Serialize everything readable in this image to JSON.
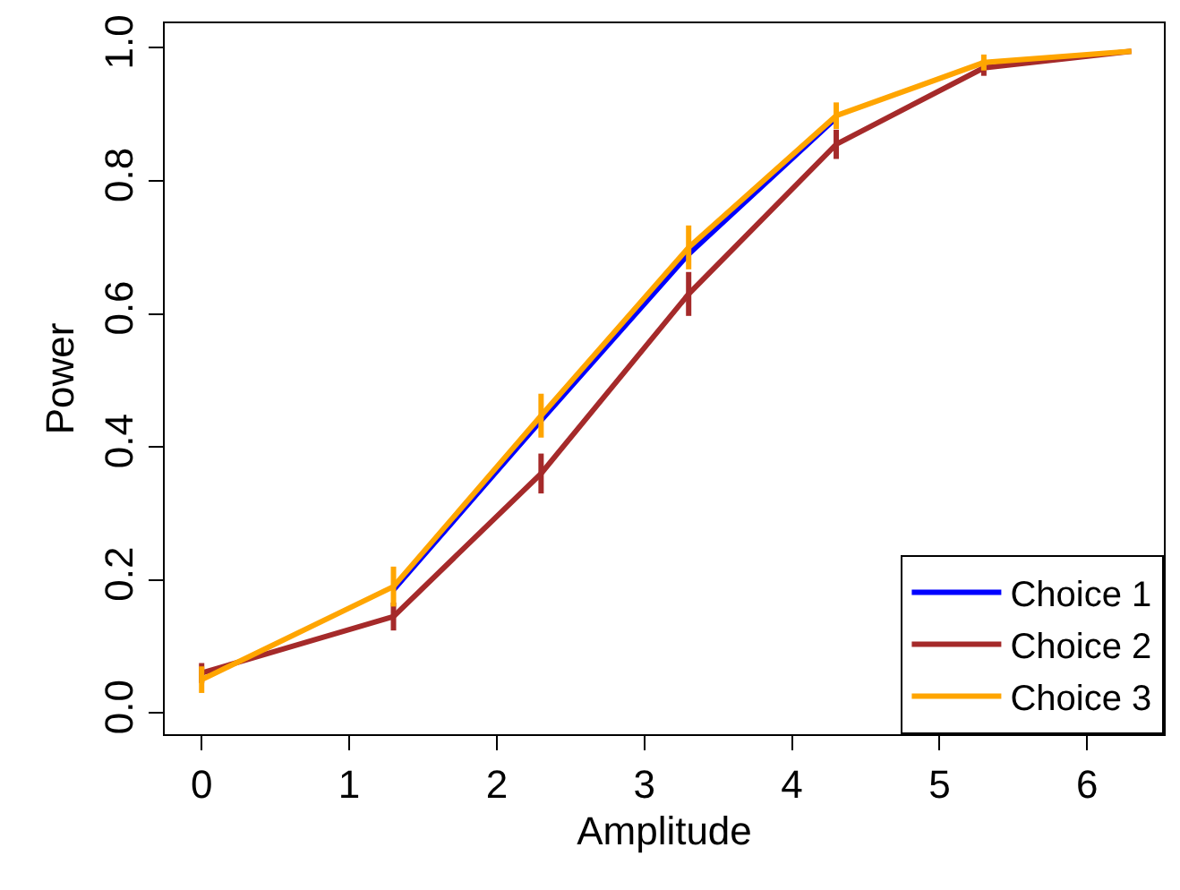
{
  "chart_data": {
    "type": "line",
    "xlabel": "Amplitude",
    "ylabel": "Power",
    "x": [
      0,
      1.3,
      2.3,
      3.3,
      4.3,
      5.3,
      6.3
    ],
    "xlim": [
      -0.25,
      6.52
    ],
    "ylim": [
      -0.032,
      1.037
    ],
    "xticks": [
      0,
      1,
      2,
      3,
      4,
      5,
      6
    ],
    "yticks": [
      {
        "value": 0,
        "label": "0.0"
      },
      {
        "value": 0.2,
        "label": "0.2"
      },
      {
        "value": 0.4,
        "label": "0.4"
      },
      {
        "value": 0.6,
        "label": "0.6"
      },
      {
        "value": 0.8,
        "label": "0.8"
      },
      {
        "value": 1,
        "label": "1.0"
      }
    ],
    "legend": "bottom right",
    "marker": "none",
    "line_style": "solid",
    "series": [
      {
        "name": "Choice 1",
        "color": "#0000ff",
        "values": [
          null,
          0.185,
          0.44,
          0.69,
          0.895,
          null,
          null
        ]
      },
      {
        "name": "Choice 2",
        "color": "#a52a2a",
        "values": [
          0.06,
          0.145,
          0.36,
          0.63,
          0.855,
          0.97,
          0.995
        ],
        "errors": [
          0.015,
          0.021,
          0.03,
          0.033,
          0.022,
          0.012,
          null
        ]
      },
      {
        "name": "Choice 3",
        "color": "#ffa500",
        "values": [
          0.05,
          0.19,
          0.447,
          0.7,
          0.898,
          0.978,
          0.995
        ],
        "errors": [
          0.02,
          0.03,
          0.033,
          0.033,
          0.02,
          0.012,
          null
        ]
      }
    ]
  }
}
